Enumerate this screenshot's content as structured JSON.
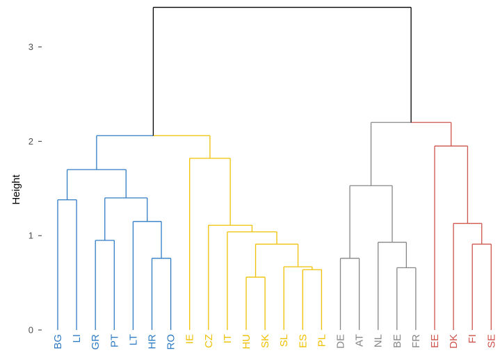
{
  "chart_data": {
    "type": "dendrogram",
    "ylabel": "Height",
    "ylim": [
      0,
      3.4
    ],
    "yticks": [
      0,
      1,
      2,
      3
    ],
    "leaves": [
      "BG",
      "LI",
      "GR",
      "PT",
      "LT",
      "HR",
      "RO",
      "IE",
      "CZ",
      "IT",
      "HU",
      "SK",
      "SL",
      "ES",
      "PL",
      "DE",
      "AT",
      "NL",
      "BE",
      "FR",
      "EE",
      "DK",
      "FI",
      "SE"
    ],
    "leaf_colors": [
      "#2e7bc4",
      "#2e7bc4",
      "#2e7bc4",
      "#2e7bc4",
      "#2e7bc4",
      "#2e7bc4",
      "#2e7bc4",
      "#efc000",
      "#efc000",
      "#efc000",
      "#efc000",
      "#efc000",
      "#efc000",
      "#efc000",
      "#efc000",
      "#868686",
      "#868686",
      "#868686",
      "#868686",
      "#868686",
      "#cd534c",
      "#cd534c",
      "#cd534c",
      "#cd534c"
    ],
    "merges": [
      {
        "left": "BG",
        "right": "LI",
        "height": 1.38,
        "color": "#2e7bc4"
      },
      {
        "left": "GR",
        "right": "PT",
        "height": 0.95,
        "color": "#2e7bc4"
      },
      {
        "left": "HR",
        "right": "RO",
        "height": 0.76,
        "color": "#2e7bc4"
      },
      {
        "left": "LT",
        "right": [
          5,
          6
        ],
        "height": 1.15,
        "color": "#2e7bc4"
      },
      {
        "left": [
          2,
          3
        ],
        "right": [
          4,
          6
        ],
        "height": 1.4,
        "color": "#2e7bc4"
      },
      {
        "left": [
          0,
          1
        ],
        "right": [
          2,
          6
        ],
        "height": 1.7,
        "color": "#2e7bc4"
      },
      {
        "left": "HU",
        "right": "SK",
        "height": 0.56,
        "color": "#efc000"
      },
      {
        "left": "ES",
        "right": "PL",
        "height": 0.64,
        "color": "#efc000"
      },
      {
        "left": "SL",
        "right": [
          13,
          14
        ],
        "height": 0.67,
        "color": "#efc000"
      },
      {
        "left": [
          10,
          11
        ],
        "right": [
          12,
          14
        ],
        "height": 0.91,
        "color": "#efc000"
      },
      {
        "left": "IT",
        "right": [
          10,
          14
        ],
        "height": 1.04,
        "color": "#efc000"
      },
      {
        "left": "CZ",
        "right": [
          9,
          14
        ],
        "height": 1.11,
        "color": "#efc000"
      },
      {
        "left": "IE",
        "right": [
          8,
          14
        ],
        "height": 1.82,
        "color": "#efc000"
      },
      {
        "left": [
          0,
          6
        ],
        "right": [
          7,
          14
        ],
        "height": 2.06,
        "color": "#2e7bc4/#efc000"
      },
      {
        "left": "DE",
        "right": "AT",
        "height": 0.76,
        "color": "#868686"
      },
      {
        "left": "BE",
        "right": "FR",
        "height": 0.66,
        "color": "#868686"
      },
      {
        "left": "NL",
        "right": [
          18,
          19
        ],
        "height": 0.93,
        "color": "#868686"
      },
      {
        "left": [
          15,
          16
        ],
        "right": [
          17,
          19
        ],
        "height": 1.53,
        "color": "#868686"
      },
      {
        "left": "FI",
        "right": "SE",
        "height": 0.91,
        "color": "#cd534c"
      },
      {
        "left": "DK",
        "right": [
          22,
          23
        ],
        "height": 1.13,
        "color": "#cd534c"
      },
      {
        "left": "EE",
        "right": [
          21,
          23
        ],
        "height": 1.95,
        "color": "#cd534c"
      },
      {
        "left": [
          15,
          19
        ],
        "right": [
          20,
          23
        ],
        "height": 2.2,
        "color": "#868686/#cd534c"
      },
      {
        "left": [
          0,
          14
        ],
        "right": [
          15,
          23
        ],
        "height": 3.42,
        "color": "#000000"
      }
    ]
  }
}
